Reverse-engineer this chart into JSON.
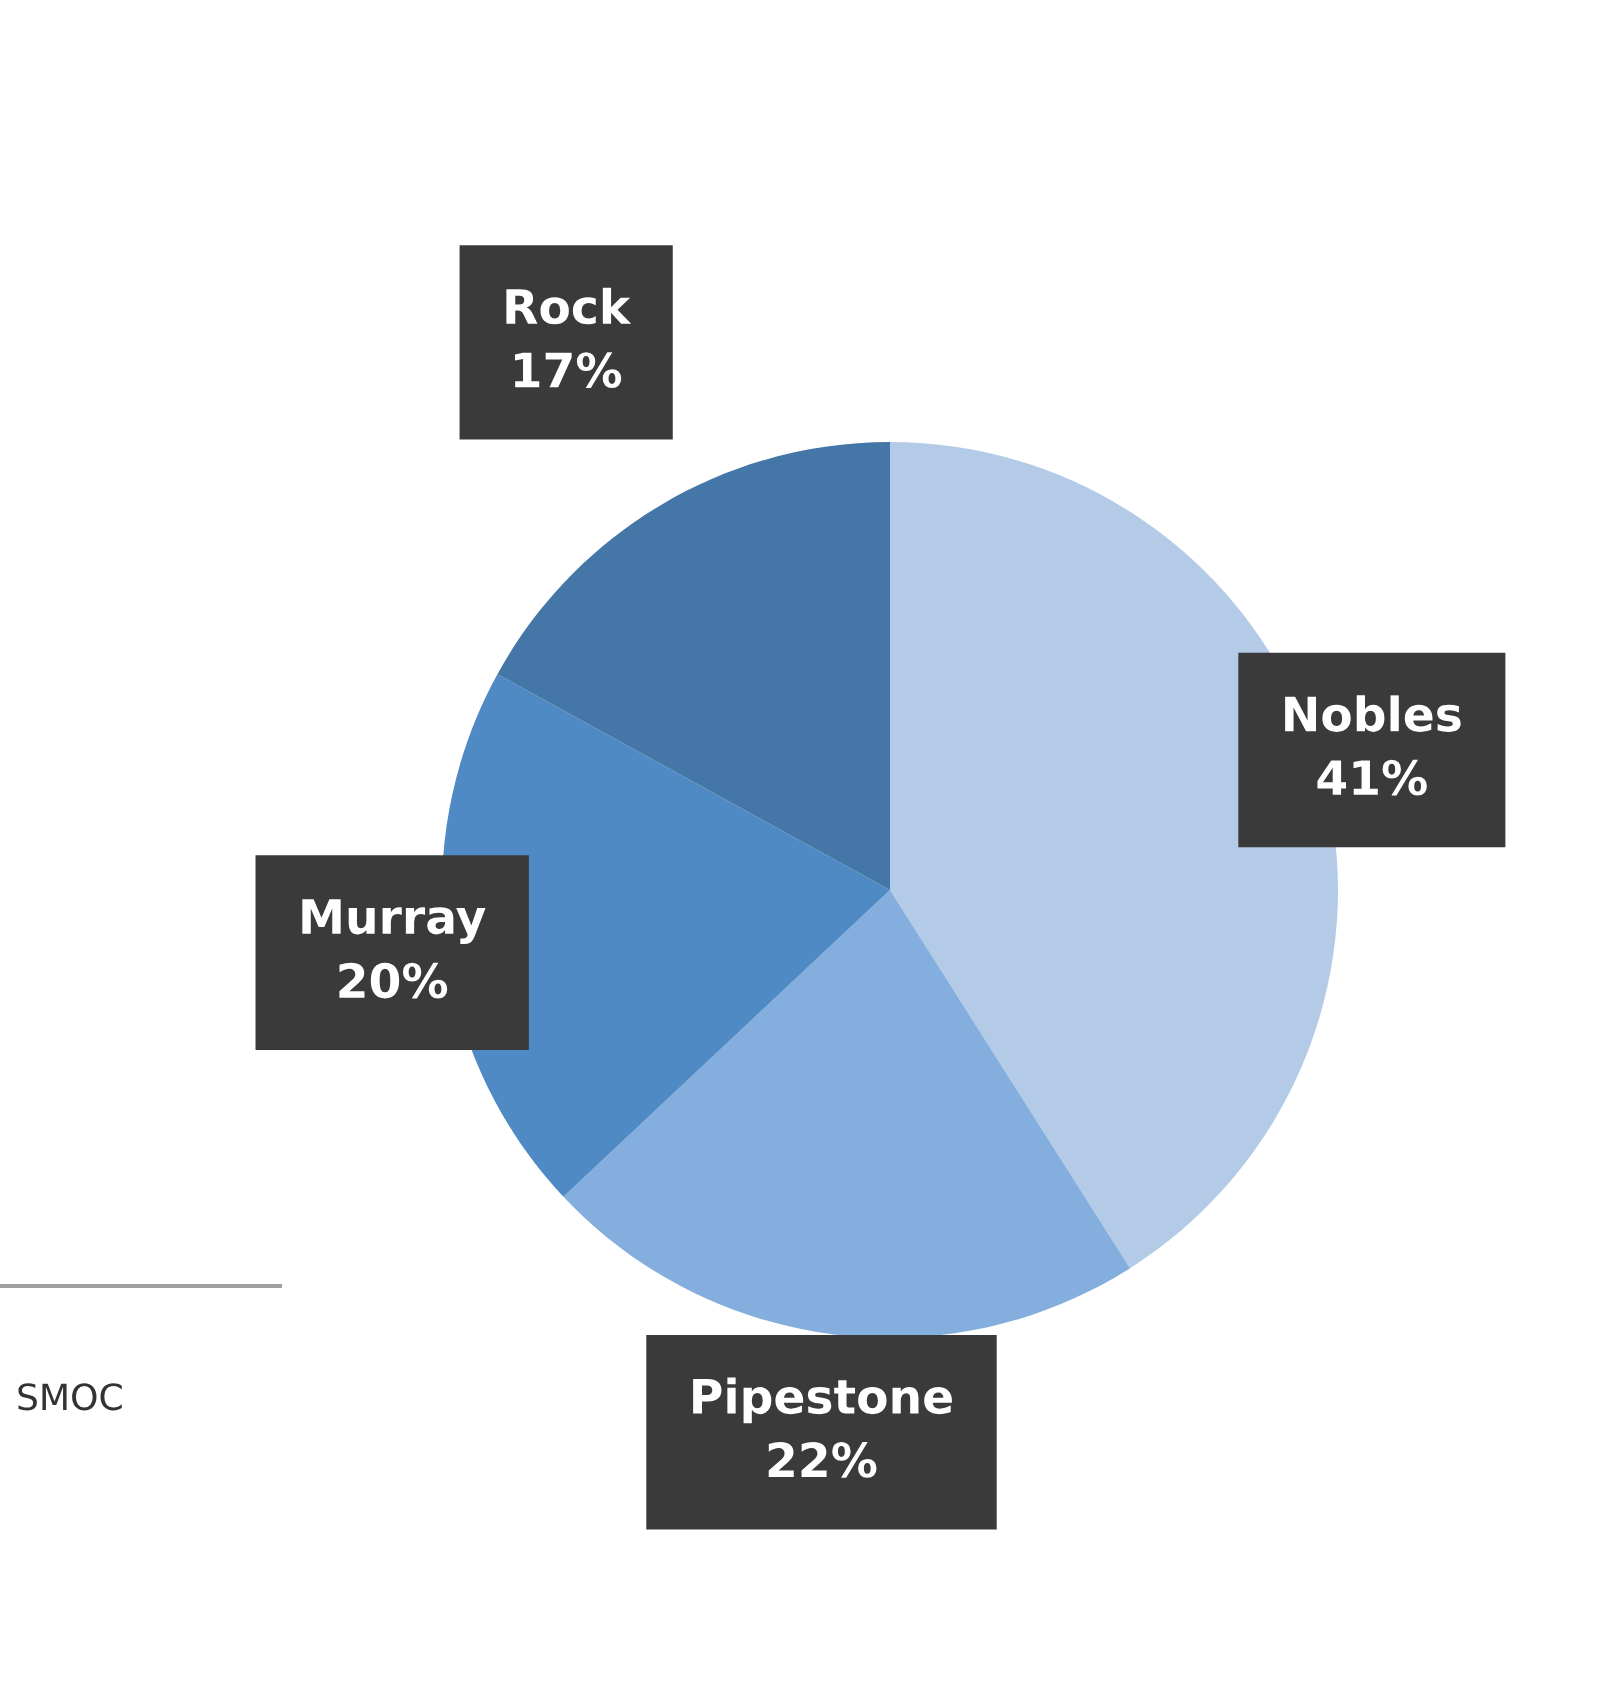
{
  "chart_data": {
    "type": "pie",
    "categories": [
      "Nobles",
      "Pipestone",
      "Murray",
      "Rock"
    ],
    "values": [
      41,
      22,
      20,
      17
    ],
    "colors": [
      "#b4cbe8",
      "#84aedd",
      "#4f8ac4",
      "#4477a8"
    ],
    "value_labels": [
      "41%",
      "22%",
      "20%",
      "17%"
    ],
    "annotations": [
      "SMOC"
    ]
  }
}
